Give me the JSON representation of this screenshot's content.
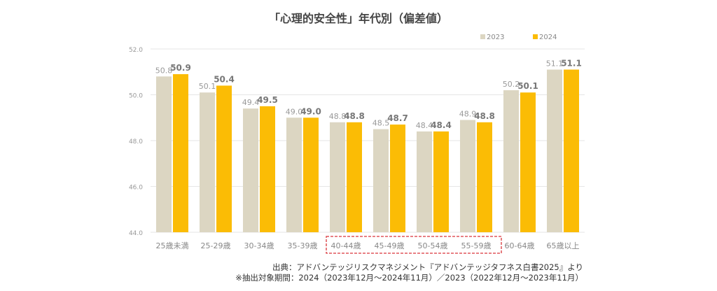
{
  "chart_data": {
    "type": "bar",
    "title": "「心理的安全性」年代別（偏差値）",
    "categories": [
      "25歳未満",
      "25-29歳",
      "30-34歳",
      "35-39歳",
      "40-44歳",
      "45-49歳",
      "50-54歳",
      "55-59歳",
      "60-64歳",
      "65歳以上"
    ],
    "series": [
      {
        "name": "2023",
        "color": "#dcd6c2",
        "values": [
          50.8,
          50.1,
          49.4,
          49.0,
          48.8,
          48.5,
          48.4,
          48.9,
          50.2,
          51.1
        ]
      },
      {
        "name": "2024",
        "color": "#fbbc05",
        "values": [
          50.9,
          50.4,
          49.5,
          49.0,
          48.8,
          48.7,
          48.4,
          48.8,
          50.1,
          51.1
        ]
      }
    ],
    "ylim": [
      44.0,
      52.0
    ],
    "yticks": [
      "44.0",
      "46.0",
      "48.0",
      "50.0",
      "52.0"
    ],
    "grid": true,
    "legend": "top-right",
    "highlight": {
      "categories": [
        "40-44歳",
        "45-49歳",
        "50-54歳",
        "55-59歳"
      ],
      "color": "#d9353a",
      "style": "dashed"
    }
  },
  "footer": {
    "source": "出典：アドバンテッジリスクマネジメント『アドバンテッジタフネス白書2025』より",
    "period": "※抽出対象期間：2024（2023年12月～2024年11月）／2023（2022年12月～2023年11月）"
  }
}
